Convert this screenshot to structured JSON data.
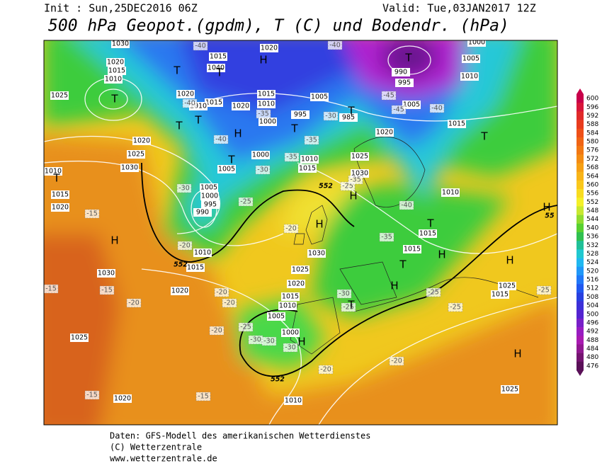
{
  "header": {
    "init": "Init : Sun,25DEC2016 06Z",
    "valid": "Valid: Tue,03JAN2017 12Z",
    "title": "500 hPa Geopot.(gpdm), T (C) und Bodendr. (hPa)"
  },
  "footer": {
    "line1": "Daten: GFS-Modell des amerikanischen Wetterdienstes",
    "line2": "(C) Wetterzentrale",
    "line3": "www.wetterzentrale.de"
  },
  "colorbar": {
    "labels": [
      600,
      596,
      592,
      588,
      584,
      580,
      576,
      572,
      568,
      564,
      560,
      556,
      552,
      548,
      544,
      540,
      536,
      532,
      528,
      524,
      520,
      516,
      512,
      508,
      504,
      500,
      496,
      492,
      488,
      484,
      480,
      476
    ]
  },
  "map": {
    "pressure_labels": [
      1030,
      1020,
      1015,
      1010,
      1025,
      1015,
      1040,
      1020,
      1020,
      1015,
      1010,
      1020,
      1015,
      1010,
      1000,
      995,
      1005,
      985,
      990,
      995,
      1005,
      1010,
      1005,
      1000,
      1015,
      1020,
      1025,
      1030,
      1010,
      1015,
      1015,
      1025,
      1015,
      1020,
      1025,
      1030,
      1010,
      1015,
      1020,
      1005,
      1000,
      995,
      990,
      1000,
      1005,
      1010,
      1015,
      1010,
      1015,
      1030,
      1025,
      1020,
      1015,
      1010,
      1005,
      1000,
      1030,
      1020,
      1025,
      1020,
      1010,
      1025
    ],
    "temperature_labels": [
      -40,
      -40,
      -45,
      -45,
      -40,
      -40,
      -35,
      -40,
      -35,
      -35,
      -30,
      -30,
      -30,
      -25,
      -25,
      -35,
      -40,
      -35,
      -20,
      -20,
      -15,
      -15,
      -15,
      -20,
      -20,
      -20,
      -20,
      -25,
      -30,
      -30,
      -30,
      -30,
      -25,
      -25,
      -25,
      -25,
      -20,
      -20,
      -15,
      -15
    ],
    "pressure_centers": [
      "T",
      "T",
      "T",
      "T",
      "T",
      "H",
      "T",
      "T",
      "T",
      "H",
      "T",
      "T",
      "H",
      "H",
      "T",
      "H",
      "T",
      "H",
      "H",
      "H",
      "T",
      "H",
      "H",
      "T",
      "H"
    ],
    "height_labels": [
      552,
      552,
      552,
      55
    ]
  }
}
